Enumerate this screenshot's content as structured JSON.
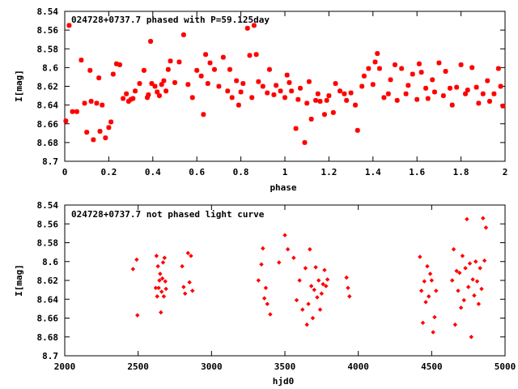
{
  "chart_data": [
    {
      "type": "scatter",
      "title": "024728+0737.7 phased with P=59.125day",
      "xlabel": "phase",
      "ylabel": "I[mag]",
      "xlim": [
        0,
        2
      ],
      "ylim": [
        8.54,
        8.7
      ],
      "y_inverted": true,
      "grid": false,
      "marker_color": "#ff0000",
      "marker": "star",
      "x_ticks": [
        0,
        0.2,
        0.4,
        0.6,
        0.8,
        1,
        1.2,
        1.4,
        1.6,
        1.8,
        2
      ],
      "x_tick_labels": [
        "0",
        "0.2",
        "0.4",
        "0.6",
        "0.8",
        "1",
        "1.2",
        "1.4",
        "1.6",
        "1.8",
        "2"
      ],
      "y_ticks": [
        8.54,
        8.56,
        8.58,
        8.6,
        8.62,
        8.64,
        8.66,
        8.68,
        8.7
      ],
      "y_tick_labels": [
        "8.54",
        "8.56",
        "8.58",
        "8.6",
        "8.62",
        "8.64",
        "8.66",
        "8.68",
        "8.7"
      ],
      "x": [
        0.005,
        0.02,
        0.035,
        0.055,
        0.075,
        0.09,
        0.1,
        0.115,
        0.12,
        0.13,
        0.145,
        0.155,
        0.16,
        0.17,
        0.185,
        0.2,
        0.21,
        0.22,
        0.235,
        0.25,
        0.265,
        0.28,
        0.29,
        0.3,
        0.31,
        0.32,
        0.34,
        0.36,
        0.375,
        0.38,
        0.39,
        0.395,
        0.41,
        0.42,
        0.43,
        0.44,
        0.45,
        0.46,
        0.47,
        0.48,
        0.5,
        0.52,
        0.54,
        0.56,
        0.58,
        0.6,
        0.62,
        0.63,
        0.64,
        0.65,
        0.66,
        0.68,
        0.7,
        0.72,
        0.74,
        0.75,
        0.76,
        0.78,
        0.79,
        0.8,
        0.81,
        0.83,
        0.84,
        0.85,
        0.86,
        0.87,
        0.88,
        0.9,
        0.92,
        0.93,
        0.95,
        0.96,
        0.98,
        1.0,
        1.01,
        1.02,
        1.03,
        1.05,
        1.06,
        1.07,
        1.09,
        1.1,
        1.11,
        1.12,
        1.14,
        1.15,
        1.16,
        1.18,
        1.19,
        1.2,
        1.22,
        1.23,
        1.25,
        1.27,
        1.28,
        1.3,
        1.32,
        1.33,
        1.35,
        1.36,
        1.38,
        1.4,
        1.41,
        1.42,
        1.43,
        1.45,
        1.47,
        1.48,
        1.5,
        1.51,
        1.53,
        1.55,
        1.56,
        1.58,
        1.6,
        1.61,
        1.62,
        1.64,
        1.65,
        1.67,
        1.68,
        1.7,
        1.72,
        1.73,
        1.75,
        1.76,
        1.78,
        1.8,
        1.82,
        1.83,
        1.85,
        1.87,
        1.88,
        1.9,
        1.92,
        1.93,
        1.95,
        1.97,
        1.98,
        1.99
      ],
      "y": [
        8.657,
        8.555,
        8.647,
        8.647,
        8.592,
        8.638,
        8.669,
        8.603,
        8.636,
        8.677,
        8.638,
        8.611,
        8.668,
        8.64,
        8.675,
        8.664,
        8.658,
        8.607,
        8.596,
        8.597,
        8.633,
        8.628,
        8.636,
        8.634,
        8.633,
        8.625,
        8.617,
        8.603,
        8.632,
        8.629,
        8.572,
        8.617,
        8.62,
        8.626,
        8.63,
        8.618,
        8.614,
        8.625,
        8.602,
        8.593,
        8.616,
        8.594,
        8.565,
        8.618,
        8.632,
        8.603,
        8.609,
        8.65,
        8.586,
        8.617,
        8.595,
        8.602,
        8.62,
        8.589,
        8.625,
        8.602,
        8.632,
        8.614,
        8.64,
        8.626,
        8.617,
        8.558,
        8.587,
        8.632,
        8.555,
        8.586,
        8.615,
        8.62,
        8.627,
        8.602,
        8.629,
        8.619,
        8.625,
        8.632,
        8.608,
        8.616,
        8.625,
        8.665,
        8.634,
        8.622,
        8.68,
        8.638,
        8.615,
        8.655,
        8.635,
        8.628,
        8.636,
        8.65,
        8.635,
        8.63,
        8.648,
        8.617,
        8.625,
        8.628,
        8.635,
        8.627,
        8.64,
        8.667,
        8.62,
        8.609,
        8.601,
        8.618,
        8.594,
        8.585,
        8.601,
        8.632,
        8.628,
        8.613,
        8.597,
        8.635,
        8.601,
        8.628,
        8.619,
        8.607,
        8.634,
        8.596,
        8.605,
        8.622,
        8.633,
        8.613,
        8.626,
        8.595,
        8.63,
        8.604,
        8.622,
        8.64,
        8.621,
        8.597,
        8.628,
        8.624,
        8.6,
        8.621,
        8.638,
        8.628,
        8.614,
        8.636,
        8.628,
        8.601,
        8.62,
        8.641
      ]
    },
    {
      "type": "scatter",
      "title": "024728+0737.7 not phased light curve",
      "xlabel": "hjd0",
      "ylabel": "I[mag]",
      "xlim": [
        2000,
        5000
      ],
      "ylim": [
        8.54,
        8.7
      ],
      "y_inverted": true,
      "grid": false,
      "marker_color": "#ff0000",
      "marker": "diamond",
      "x_ticks": [
        2000,
        2500,
        3000,
        3500,
        4000,
        4500,
        5000
      ],
      "x_tick_labels": [
        "2000",
        "2500",
        "3000",
        "3500",
        "4000",
        "4500",
        "5000"
      ],
      "y_ticks": [
        8.54,
        8.56,
        8.58,
        8.6,
        8.62,
        8.64,
        8.66,
        8.68,
        8.7
      ],
      "y_tick_labels": [
        "8.54",
        "8.56",
        "8.58",
        "8.6",
        "8.62",
        "8.64",
        "8.66",
        "8.68",
        "8.7"
      ],
      "x": [
        2465,
        2490,
        2495,
        2620,
        2625,
        2630,
        2635,
        2640,
        2645,
        2650,
        2655,
        2660,
        2665,
        2670,
        2675,
        2680,
        2685,
        2690,
        2800,
        2810,
        2820,
        2840,
        2850,
        2860,
        2870,
        3320,
        3340,
        3350,
        3360,
        3370,
        3380,
        3400,
        3460,
        3500,
        3520,
        3560,
        3580,
        3600,
        3620,
        3640,
        3650,
        3660,
        3670,
        3680,
        3690,
        3700,
        3710,
        3720,
        3730,
        3740,
        3750,
        3760,
        3770,
        3780,
        3790,
        3920,
        3930,
        3940,
        4420,
        4430,
        4440,
        4450,
        4460,
        4470,
        4480,
        4490,
        4500,
        4510,
        4520,
        4530,
        4640,
        4650,
        4660,
        4670,
        4680,
        4690,
        4700,
        4710,
        4720,
        4730,
        4740,
        4750,
        4760,
        4770,
        4780,
        4790,
        4800,
        4810,
        4820,
        4830,
        4840,
        4850,
        4860,
        4870
      ],
      "y": [
        8.608,
        8.598,
        8.657,
        8.628,
        8.594,
        8.637,
        8.605,
        8.628,
        8.62,
        8.613,
        8.654,
        8.632,
        8.618,
        8.601,
        8.637,
        8.596,
        8.621,
        8.629,
        8.605,
        8.627,
        8.634,
        8.591,
        8.622,
        8.594,
        8.631,
        8.62,
        8.603,
        8.586,
        8.639,
        8.628,
        8.645,
        8.656,
        8.601,
        8.572,
        8.587,
        8.596,
        8.641,
        8.62,
        8.651,
        8.607,
        8.667,
        8.645,
        8.587,
        8.626,
        8.66,
        8.63,
        8.606,
        8.638,
        8.62,
        8.651,
        8.634,
        8.624,
        8.609,
        8.626,
        8.619,
        8.617,
        8.628,
        8.637,
        8.595,
        8.631,
        8.665,
        8.621,
        8.643,
        8.605,
        8.637,
        8.613,
        8.62,
        8.675,
        8.659,
        8.631,
        8.62,
        8.587,
        8.667,
        8.61,
        8.631,
        8.612,
        8.649,
        8.594,
        8.641,
        8.607,
        8.555,
        8.627,
        8.602,
        8.68,
        8.619,
        8.636,
        8.6,
        8.621,
        8.645,
        8.607,
        8.629,
        8.554,
        8.599,
        8.564
      ]
    }
  ]
}
